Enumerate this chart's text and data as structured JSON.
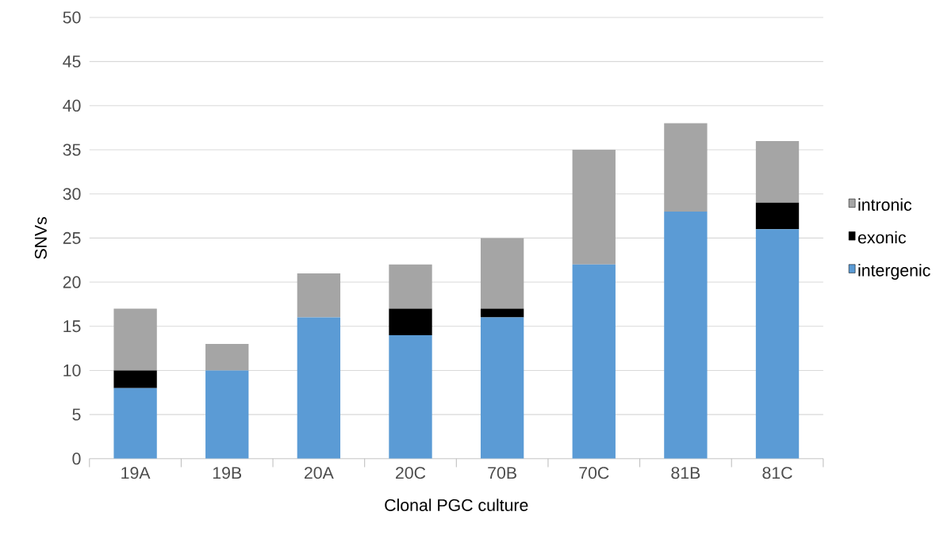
{
  "chart_data": {
    "type": "bar",
    "stacked": true,
    "xlabel": "Clonal PGC culture",
    "ylabel": "SNVs",
    "categories": [
      "19A",
      "19B",
      "20A",
      "20C",
      "70B",
      "70C",
      "81B",
      "81C"
    ],
    "series": [
      {
        "name": "intergenic",
        "color": "#5b9bd5",
        "values": [
          8,
          10,
          16,
          14,
          16,
          22,
          28,
          26
        ]
      },
      {
        "name": "exonic",
        "color": "#000000",
        "values": [
          2,
          0,
          0,
          3,
          1,
          0,
          0,
          3
        ]
      },
      {
        "name": "intronic",
        "color": "#a5a5a5",
        "values": [
          7,
          3,
          5,
          5,
          8,
          13,
          10,
          7
        ]
      }
    ],
    "ylim": [
      0,
      50
    ],
    "yticks": [
      0,
      5,
      10,
      15,
      20,
      25,
      30,
      35,
      40,
      45,
      50
    ],
    "grid": "y",
    "legend": "right"
  }
}
